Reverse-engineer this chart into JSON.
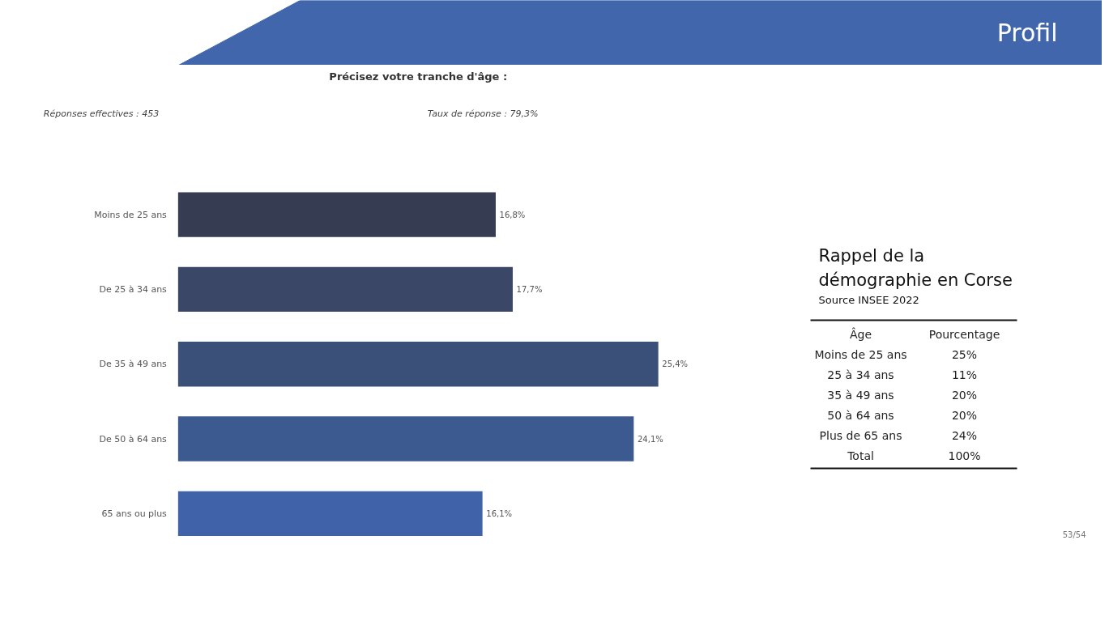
{
  "chart_data": [
    {
      "type": "bar",
      "orientation": "horizontal",
      "title": "Précisez votre tranche d'âge :",
      "annotations": [
        "Réponses effectives : 453",
        "Taux de réponse : 79,3%",
        "Profil",
        "53/54"
      ],
      "categories": [
        "Moins de 25 ans",
        "De 25 à 34 ans",
        "De 35 à 49 ans",
        "De 50 à 64 ans",
        "65 ans ou plus"
      ],
      "values": [
        16.8,
        17.7,
        25.4,
        24.1,
        16.1
      ],
      "value_labels": [
        "16,8%",
        "17,7%",
        "25,4%",
        "24,1%",
        "16,1%"
      ],
      "colors": [
        "#363c52",
        "#3a4767",
        "#3b5079",
        "#3c5a8f",
        "#4062a8"
      ]
    },
    {
      "type": "other",
      "title": "Rappel de la démographie en Corse",
      "subtitle": "Source INSEE 2022",
      "annotations": [
        "Âge",
        "Pourcentage",
        "Moins de 25 ans",
        "25%",
        "25 à 34 ans",
        "11%",
        "35 à 49 ans",
        "20%",
        "50 à 64 ans",
        "20%",
        "Plus de 65 ans",
        "24%",
        "Total",
        "100%"
      ]
    }
  ]
}
